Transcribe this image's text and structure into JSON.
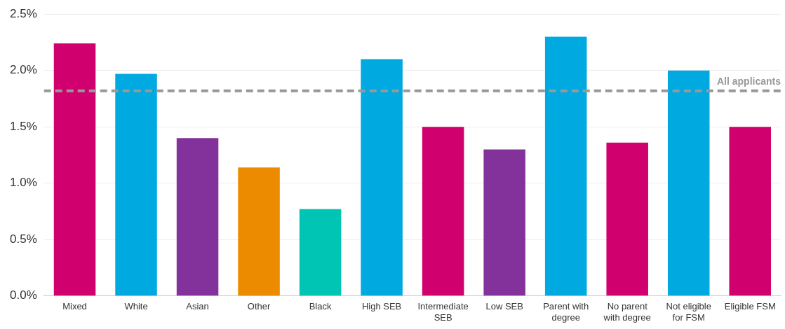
{
  "chart_data": {
    "type": "bar",
    "categories": [
      "Mixed",
      "White",
      "Asian",
      "Other",
      "Black",
      "High SEB",
      "Intermediate SEB",
      "Low SEB",
      "Parent with degree",
      "No parent with degree",
      "Not eligible for FSM",
      "Eligible FSM"
    ],
    "values": [
      2.24,
      1.97,
      1.4,
      1.14,
      0.77,
      2.1,
      1.5,
      1.3,
      2.3,
      1.36,
      2.0,
      1.5
    ],
    "colors": [
      "#d0006f",
      "#00a9e0",
      "#84329b",
      "#ed8b00",
      "#00c5b5",
      "#00a9e0",
      "#d0006f",
      "#84329b",
      "#00a9e0",
      "#d0006f",
      "#00a9e0",
      "#d0006f"
    ],
    "ylim": [
      0,
      2.5
    ],
    "yticks": [
      {
        "value": 0,
        "label": "0.0%"
      },
      {
        "value": 0.5,
        "label": "0.5%"
      },
      {
        "value": 1,
        "label": "1.0%"
      },
      {
        "value": 1.5,
        "label": "1.5%"
      },
      {
        "value": 2,
        "label": "2.0%"
      },
      {
        "value": 2.5,
        "label": "2.5%"
      }
    ],
    "grid": "y",
    "ref_lines": [
      {
        "axis": "y",
        "value": 1.82,
        "label": "All applicants",
        "color": "#999999",
        "line_style": "dashed"
      }
    ],
    "legend": false
  }
}
